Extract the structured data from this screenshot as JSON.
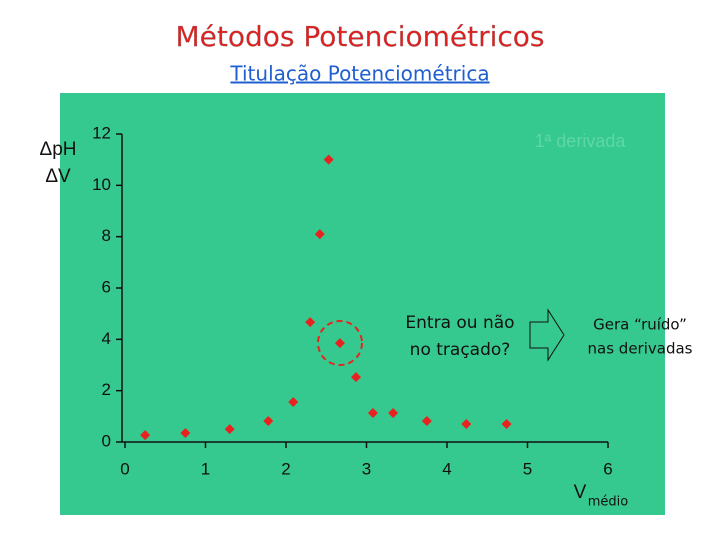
{
  "title": "Métodos Potenciométricos",
  "subtitle": "Titulação Potenciométrica",
  "chart_data": {
    "type": "scatter",
    "y_label": {
      "numerator": "ΔpH",
      "denominator": "ΔV"
    },
    "x_label": {
      "main": "V",
      "subscript": "médio"
    },
    "corner_label": "1ª derivada",
    "annotations": [
      [
        "Entra ou não",
        "no traçado?"
      ],
      [
        "Gera “ruído”",
        "nas derivadas"
      ]
    ],
    "x": [
      0.25,
      0.75,
      1.3,
      1.78,
      2.09,
      2.3,
      2.42,
      2.53,
      2.67,
      2.87,
      3.08,
      3.33,
      3.75,
      4.24,
      4.74
    ],
    "values": [
      0.27,
      0.35,
      0.5,
      0.82,
      1.56,
      4.67,
      8.1,
      11.0,
      3.85,
      2.53,
      1.13,
      1.13,
      0.82,
      0.7,
      0.7
    ],
    "color": "#e8231f",
    "background": "#36c98f",
    "xlim": [
      0,
      6
    ],
    "xticks": [
      0,
      1,
      2,
      3,
      4,
      5,
      6
    ],
    "ylim": [
      0,
      12
    ],
    "yticks": [
      0,
      2,
      4,
      6,
      8,
      10,
      12
    ]
  }
}
